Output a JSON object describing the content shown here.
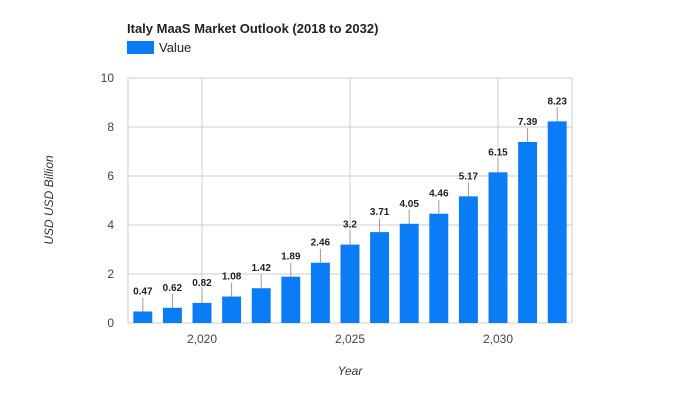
{
  "chart_data": {
    "type": "bar",
    "title": "Italy MaaS Market Outlook (2018 to 2032)",
    "xlabel": "Year",
    "ylabel": "USD USD Billion",
    "legend": {
      "position": "top-left",
      "entries": [
        "Value"
      ]
    },
    "colors": {
      "bar": "#0a7cf5",
      "grid": "#cccccc"
    },
    "grid": true,
    "ylim": [
      0,
      10
    ],
    "yticks": [
      0,
      2,
      4,
      6,
      8,
      10
    ],
    "xlim": [
      2017.5,
      2032.5
    ],
    "xticks": [
      2020,
      2025,
      2030
    ],
    "xtick_labels": [
      "2,020",
      "2,025",
      "2,030"
    ],
    "x": [
      2018,
      2019,
      2020,
      2021,
      2022,
      2023,
      2024,
      2025,
      2026,
      2027,
      2028,
      2029,
      2030,
      2031,
      2032
    ],
    "series": [
      {
        "name": "Value",
        "values": [
          0.47,
          0.62,
          0.82,
          1.08,
          1.42,
          1.89,
          2.46,
          3.2,
          3.71,
          4.05,
          4.46,
          5.17,
          6.15,
          7.39,
          8.23
        ]
      }
    ]
  }
}
